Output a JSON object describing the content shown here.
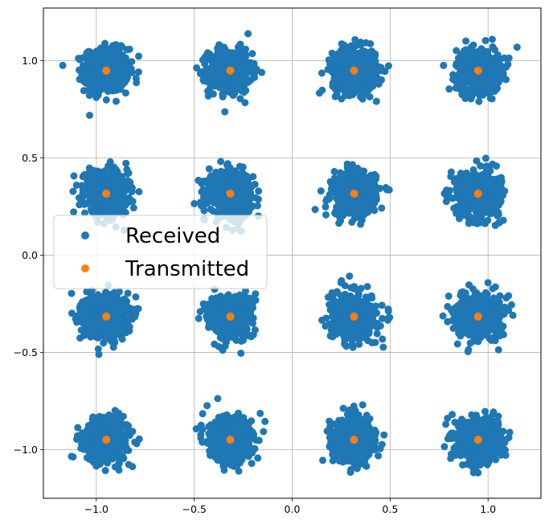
{
  "chart_data": {
    "type": "scatter",
    "title": "",
    "xlabel": "",
    "ylabel": "",
    "xlim": [
      -1.27,
      1.27
    ],
    "ylim": [
      -1.25,
      1.27
    ],
    "grid": true,
    "legend_position": "center-left",
    "xticks": [
      -1.0,
      -0.5,
      0.0,
      0.5,
      1.0
    ],
    "xtick_labels": [
      "−1.0",
      "−0.5",
      "0.0",
      "0.5",
      "1.0"
    ],
    "yticks": [
      -1.0,
      -0.5,
      0.0,
      0.5,
      1.0
    ],
    "ytick_labels": [
      "−1.0",
      "−0.5",
      "0.0",
      "0.5",
      "1.0"
    ],
    "series": [
      {
        "name": "Received",
        "color": "#1f77b4",
        "cluster_centers": [
          [
            -0.949,
            0.949
          ],
          [
            -0.316,
            0.949
          ],
          [
            0.316,
            0.949
          ],
          [
            0.949,
            0.949
          ],
          [
            -0.949,
            0.316
          ],
          [
            -0.316,
            0.316
          ],
          [
            0.316,
            0.316
          ],
          [
            0.949,
            0.316
          ],
          [
            -0.949,
            -0.316
          ],
          [
            -0.316,
            -0.316
          ],
          [
            0.316,
            -0.316
          ],
          [
            0.949,
            -0.316
          ],
          [
            -0.949,
            -0.949
          ],
          [
            -0.316,
            -0.949
          ],
          [
            0.316,
            -0.949
          ],
          [
            0.949,
            -0.949
          ]
        ],
        "noise_std": 0.055,
        "points_per_cluster": 600
      },
      {
        "name": "Transmitted",
        "color": "#ff7f0e",
        "points": [
          [
            -0.949,
            0.949
          ],
          [
            -0.316,
            0.949
          ],
          [
            0.316,
            0.949
          ],
          [
            0.949,
            0.949
          ],
          [
            -0.949,
            0.316
          ],
          [
            -0.316,
            0.316
          ],
          [
            0.316,
            0.316
          ],
          [
            0.949,
            0.316
          ],
          [
            -0.949,
            -0.316
          ],
          [
            -0.316,
            -0.316
          ],
          [
            0.316,
            -0.316
          ],
          [
            0.949,
            -0.316
          ],
          [
            -0.949,
            -0.949
          ],
          [
            -0.316,
            -0.949
          ],
          [
            0.316,
            -0.949
          ],
          [
            0.949,
            -0.949
          ]
        ]
      }
    ],
    "legend": {
      "entries": [
        "Received",
        "Transmitted"
      ]
    }
  }
}
